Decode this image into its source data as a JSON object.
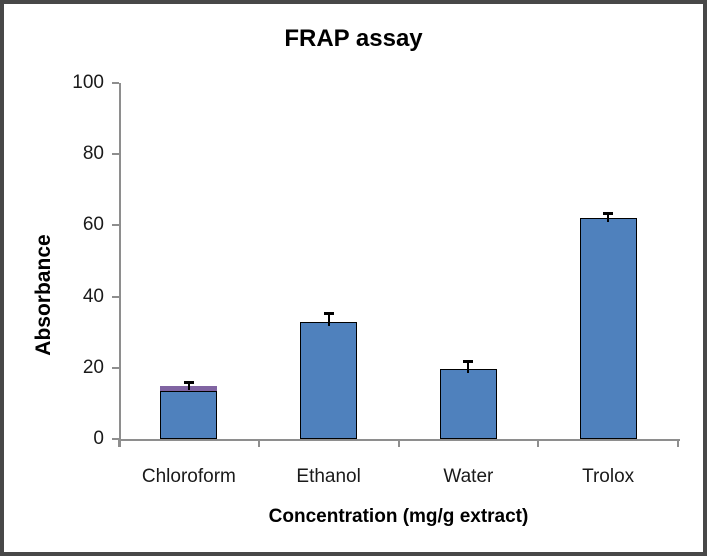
{
  "window": {
    "frame_color": "#484848",
    "background_color": "#ffffff"
  },
  "chart_data": {
    "type": "bar",
    "title": "FRAP assay",
    "categories": [
      "Chloroform",
      "Ethanol",
      "Water",
      "Trolox"
    ],
    "stacked": true,
    "series": [
      {
        "name": "primary-series",
        "color": "#4f81bd",
        "values": [
          13.6,
          33,
          19.6,
          62
        ]
      },
      {
        "name": "secondary-series",
        "color": "#8064a2",
        "values": [
          1.4,
          0,
          0,
          0
        ]
      }
    ],
    "error_bars": {
      "color": "#000000",
      "values": [
        1.1,
        2.5,
        2.4,
        1.4
      ]
    },
    "xlabel": "Concentration (mg/g extract)",
    "ylabel": "Absorbance",
    "ylim": [
      0,
      100
    ],
    "yticks": [
      0,
      20,
      40,
      60,
      80,
      100
    ],
    "grid": false,
    "legend": "none",
    "axis_color": "#8e8e8e",
    "bar_border_color": "#000000",
    "text_color": "#1a1a1a"
  }
}
